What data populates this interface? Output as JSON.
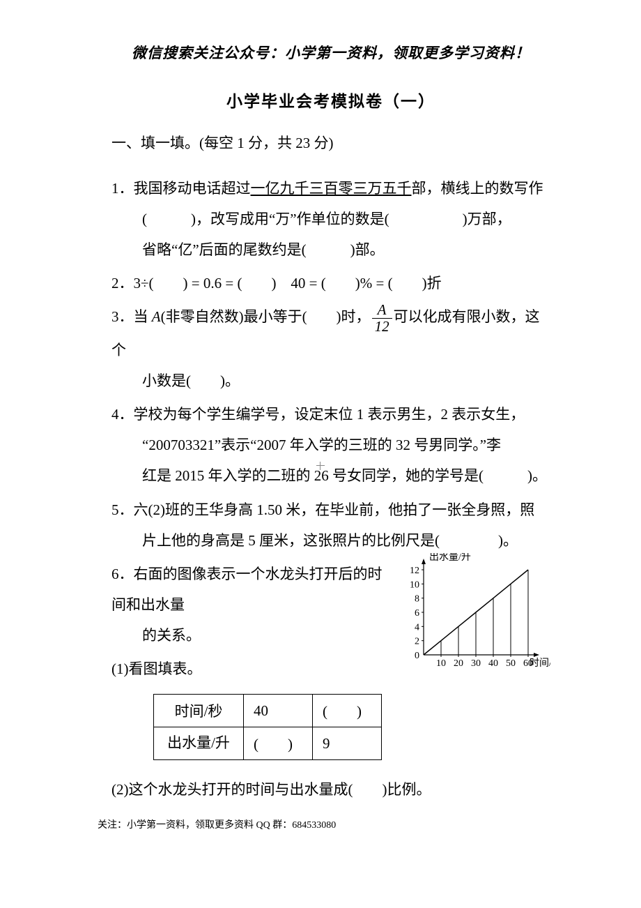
{
  "header": "微信搜索关注公众号：小学第一资料，领取更多学习资料！",
  "title": "小学毕业会考模拟卷（一）",
  "section1": "一、填一填。(每空 1 分，共 23 分)",
  "q1": {
    "line1a": "1．我国移动电话超过",
    "underline": "一亿九千三百零三万五千",
    "line1b": "部，横线上的数写作",
    "line2": "(　　　)，改写成用“万”作单位的数是(　　　　　)万部，",
    "line3": "省略“亿”后面的尾数约是(　　　)部。"
  },
  "q2": "2．3÷(　　) = 0.6 = (　　)　40 = (　　)% = (　　)折",
  "q3": {
    "pre": "3．当 ",
    "var": "A",
    "mid1": "(非零自然数)最小等于(　　)时，",
    "frac_num": "A",
    "frac_den": "12",
    "mid2": "可以化成有限小数，这个",
    "line2": "小数是(　　)。"
  },
  "q4": {
    "line1": "4．学校为每个学生编学号，设定末位 1 表示男生，2 表示女生，",
    "line2": "“200703321”表示“2007 年入学的三班的 32 号男同学。”李",
    "line3": "红是 2015 年入学的二班的 26 号女同学，她的学号是(　　　)。"
  },
  "q5": {
    "line1": "5．六(2)班的王华身高 1.50 米，在毕业前，他拍了一张全身照，照",
    "line2": "片上他的身高是 5 厘米，这张照片的比例尺是(　　　　)。"
  },
  "q6": {
    "line1": "6．右面的图像表示一个水龙头打开后的时间和出水量",
    "line2": "的关系。",
    "sub1": "(1)看图填表。",
    "sub2": "(2)这个水龙头打开的时间与出水量成(　　)比例。"
  },
  "table": {
    "r1c1": "时间/秒",
    "r1c2": "40",
    "r1c3": "(　　)",
    "r2c1": "出水量/升",
    "r2c2": "(　　)",
    "r2c3": "9"
  },
  "chart": {
    "ylabel": "出水量/升",
    "xlabel": "时间/秒",
    "y_ticks": [
      0,
      2,
      4,
      6,
      8,
      10,
      12
    ],
    "x_ticks": [
      10,
      20,
      30,
      40,
      50,
      60
    ],
    "ylim": [
      0,
      12
    ],
    "xlim": [
      0,
      60
    ],
    "line_color": "#000000",
    "background_color": "#ffffff",
    "axis_color": "#000000",
    "fontsize": 14,
    "data_points": [
      [
        0,
        0
      ],
      [
        10,
        2
      ],
      [
        20,
        4
      ],
      [
        30,
        6
      ],
      [
        40,
        8
      ],
      [
        50,
        10
      ],
      [
        60,
        12
      ]
    ],
    "drop_lines_x": [
      10,
      20,
      30,
      40,
      50,
      60
    ]
  },
  "footer": "关注：小学第一资料，领取更多资料 QQ 群：684533080"
}
